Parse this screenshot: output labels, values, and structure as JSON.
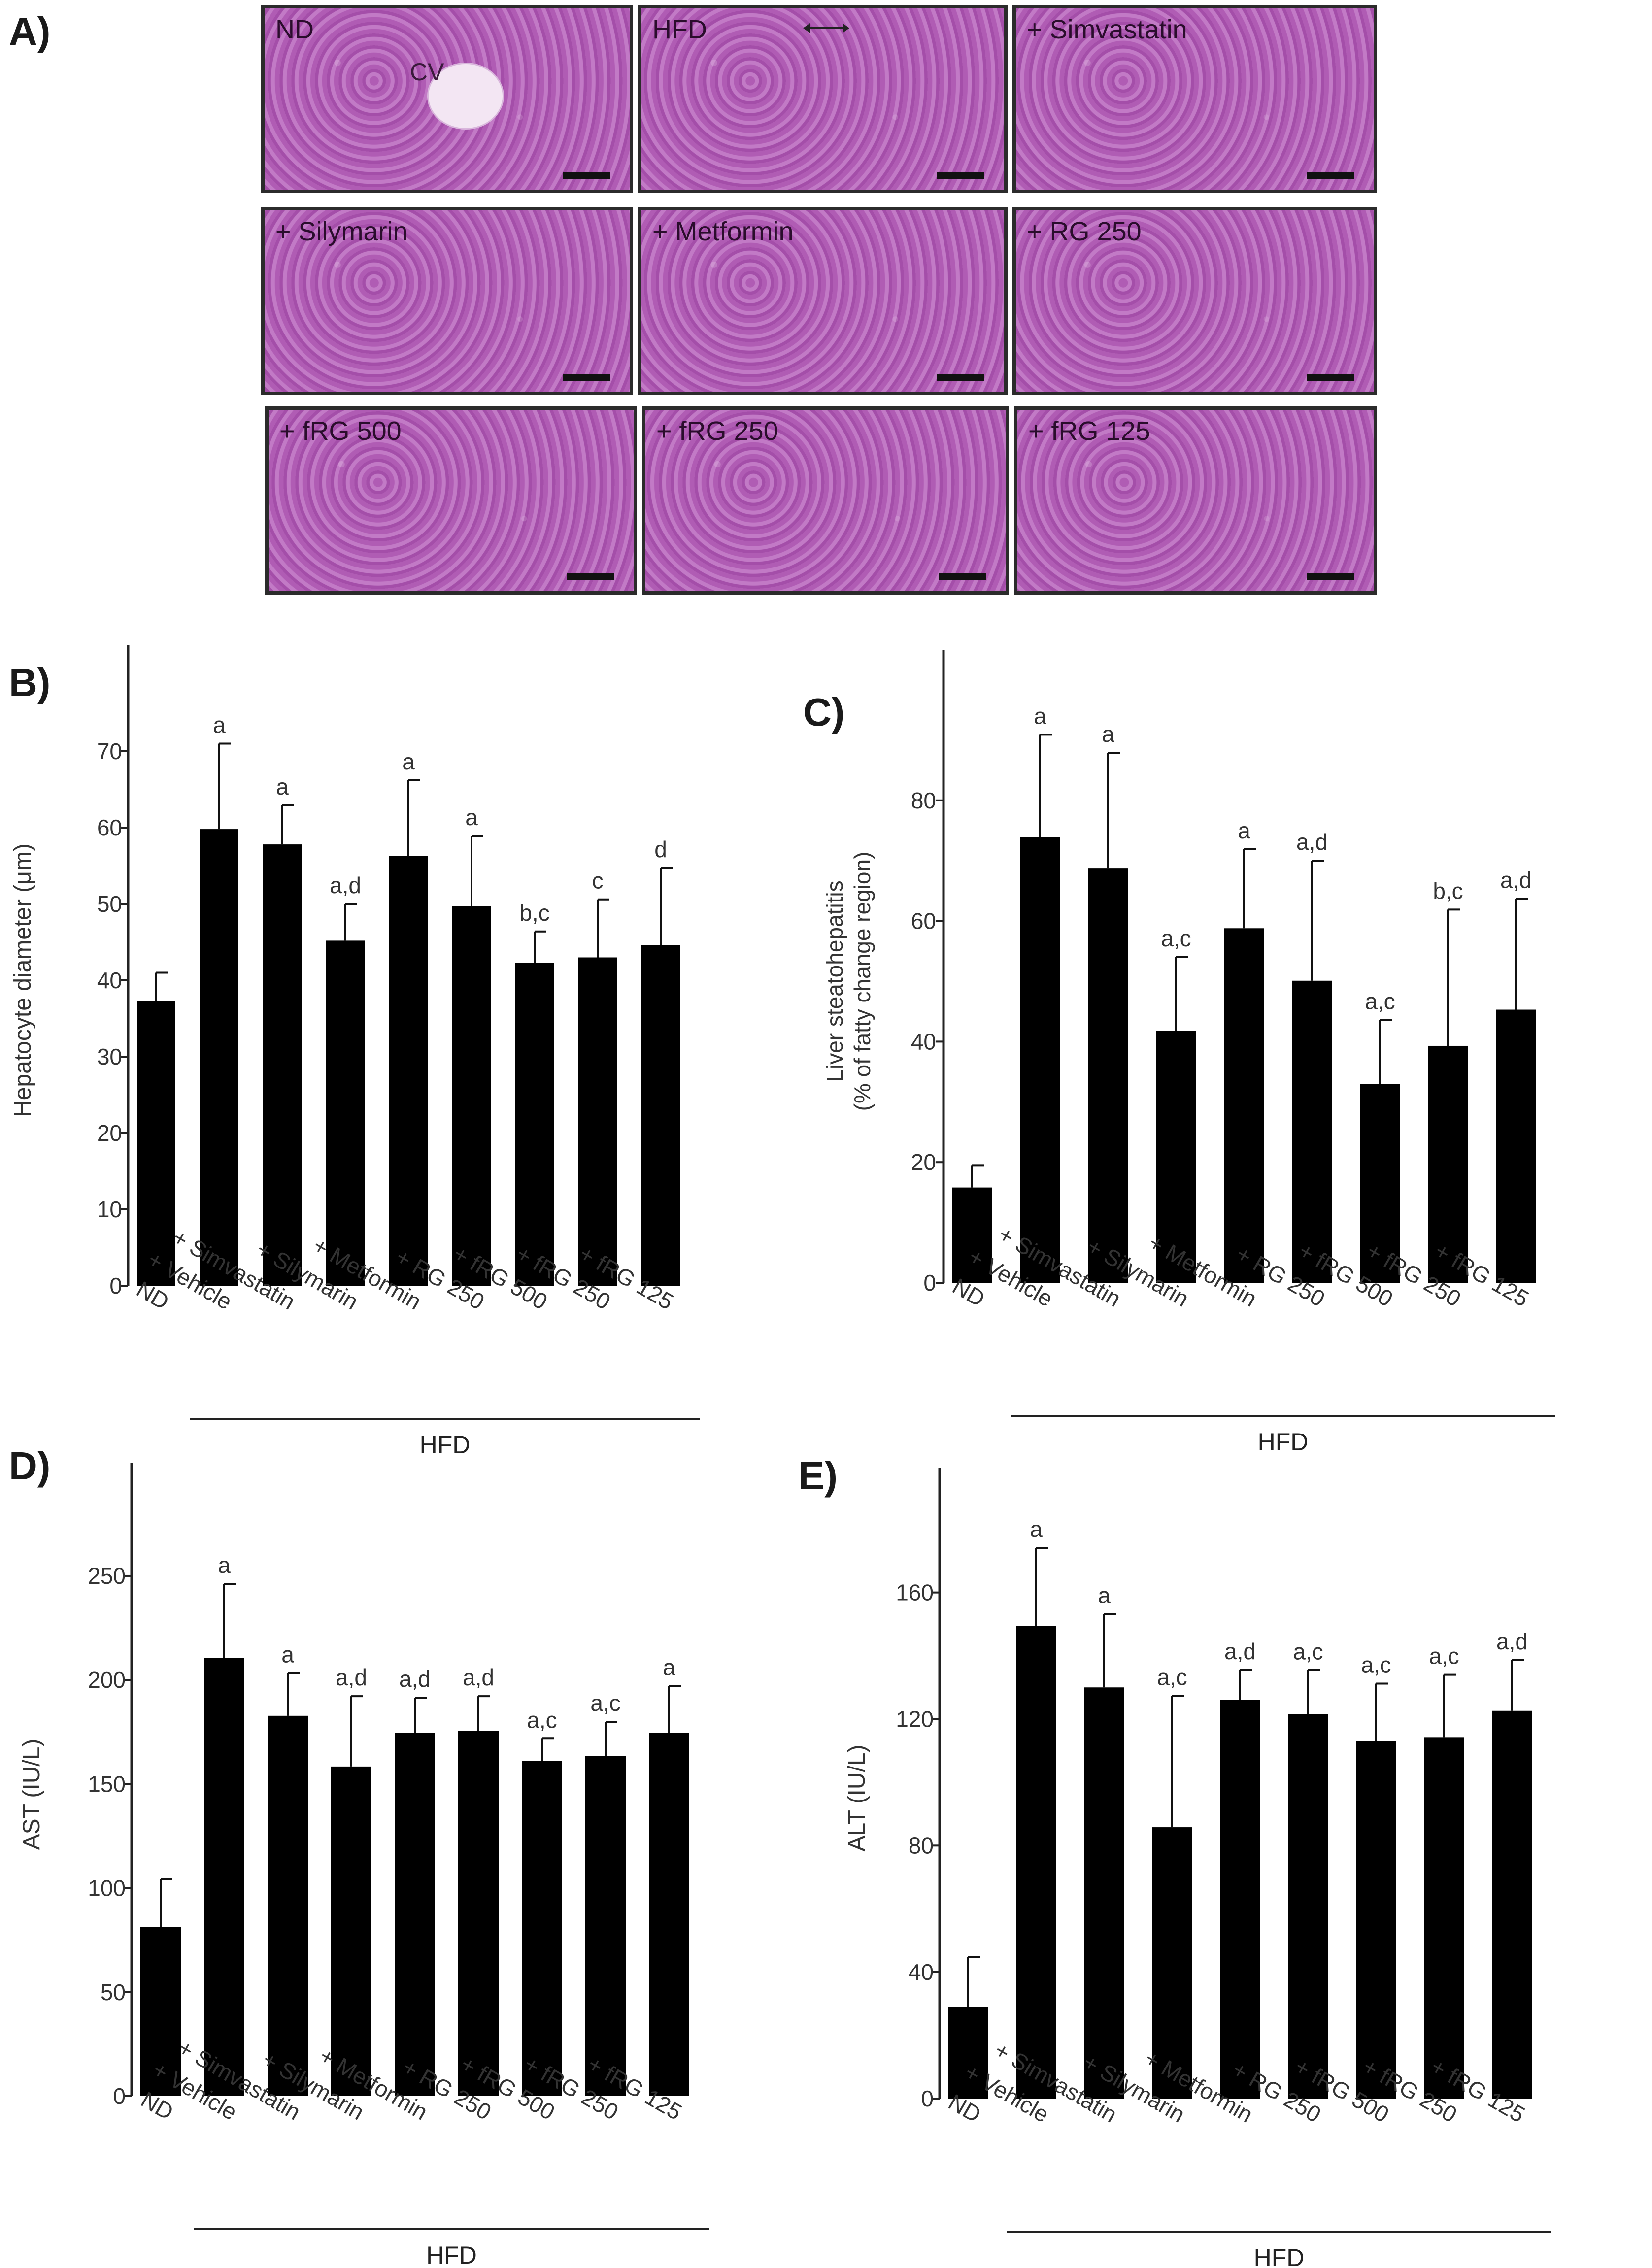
{
  "panel_labels": {
    "a": "A)",
    "b": "B)",
    "c": "C)",
    "d": "D)",
    "e": "E)"
  },
  "micrographs": [
    {
      "label": "ND",
      "annotation": "CV"
    },
    {
      "label": "HFD"
    },
    {
      "label": "+ Simvastatin"
    },
    {
      "label": "+ Silymarin"
    },
    {
      "label": "+ Metformin"
    },
    {
      "label": "+ RG 250"
    },
    {
      "label": "+ fRG 500"
    },
    {
      "label": "+ fRG 250"
    },
    {
      "label": "+ fRG 125"
    }
  ],
  "chart_data": [
    {
      "type": "bar",
      "panel": "B)",
      "categories": [
        "ND",
        "+ Vehicle",
        "+ Simvastatin",
        "+ Silymarin",
        "+ Metformin",
        "+ RG 250",
        "+ fRG 500",
        "+ fRG 250",
        "+ fRG 125"
      ],
      "values": [
        37.3,
        59.8,
        57.8,
        45.2,
        56.3,
        49.7,
        42.3,
        43.0,
        44.6
      ],
      "errors": [
        3.7,
        11.2,
        5.1,
        4.8,
        9.9,
        9.2,
        4.1,
        7.6,
        10.1
      ],
      "significance": [
        "",
        "a",
        "a",
        "a,d",
        "a",
        "a",
        "b,c",
        "c",
        "d"
      ],
      "ylabel": "Hepatocyte diameter (μm)",
      "ylim": [
        0,
        80
      ],
      "yticks": [
        0,
        10,
        20,
        30,
        40,
        50,
        60,
        70
      ],
      "group_label": "HFD",
      "color": "#000000"
    },
    {
      "type": "bar",
      "panel": "C)",
      "categories": [
        "ND",
        "+ Vehicle",
        "+ Simvastatin",
        "+ Silymarin",
        "+ Metformin",
        "+ RG 250",
        "+ fRG 500",
        "+ fRG 250",
        "+ fRG 125"
      ],
      "values": [
        15.8,
        73.9,
        68.7,
        41.8,
        58.8,
        50.1,
        33.0,
        39.3,
        45.3
      ],
      "errors": [
        3.7,
        17.0,
        19.2,
        12.2,
        13.1,
        19.9,
        10.6,
        22.6,
        18.4
      ],
      "significance": [
        "",
        "a",
        "a",
        "a,c",
        "a",
        "a,d",
        "a,c",
        "b,c",
        "a,d"
      ],
      "ylabel_lines": [
        "Liver steatohepatitis",
        "(% of fatty change region)"
      ],
      "ylim": [
        0,
        100
      ],
      "yticks": [
        0,
        20,
        40,
        60,
        80
      ],
      "group_label": "HFD",
      "color": "#000000"
    },
    {
      "type": "bar",
      "panel": "D)",
      "categories": [
        "ND",
        "+ Vehicle",
        "+ Simvastatin",
        "+ Silymarin",
        "+ Metformin",
        "+ RG 250",
        "+ fRG 500",
        "+ fRG 250",
        "+ fRG 125"
      ],
      "values": [
        81.3,
        210.5,
        182.8,
        158.4,
        174.6,
        175.6,
        161.1,
        163.4,
        174.5
      ],
      "errors": [
        23.0,
        35.7,
        20.4,
        33.8,
        16.9,
        16.6,
        10.7,
        16.5,
        22.6
      ],
      "significance": [
        "",
        "a",
        "a",
        "a,d",
        "a,d",
        "a,d",
        "a,c",
        "a,c",
        "a"
      ],
      "ylabel": "AST (IU/L)",
      "ylim": [
        0,
        290
      ],
      "yticks": [
        0,
        50,
        100,
        150,
        200,
        250
      ],
      "group_label": "HFD",
      "color": "#000000"
    },
    {
      "type": "bar",
      "panel": "E)",
      "categories": [
        "ND",
        "+ Vehicle",
        "+ Simvastatin",
        "+ Silymarin",
        "+ Metformin",
        "+ RG 250",
        "+ fRG 500",
        "+ fRG 250",
        "+ fRG 125"
      ],
      "values": [
        28.9,
        149.4,
        130.0,
        85.8,
        126.0,
        121.6,
        113.0,
        114.1,
        122.6
      ],
      "errors": [
        15.9,
        24.7,
        23.2,
        41.5,
        9.5,
        13.8,
        18.2,
        19.9,
        16.0
      ],
      "significance": [
        "",
        "a",
        "a",
        "a,c",
        "a,d",
        "a,c",
        "a,c",
        "a,c",
        "a,d"
      ],
      "ylabel": "ALT (IU/L)",
      "ylim": [
        0,
        190
      ],
      "yticks": [
        0,
        40,
        80,
        120,
        160
      ],
      "group_label": "HFD",
      "color": "#000000"
    }
  ]
}
